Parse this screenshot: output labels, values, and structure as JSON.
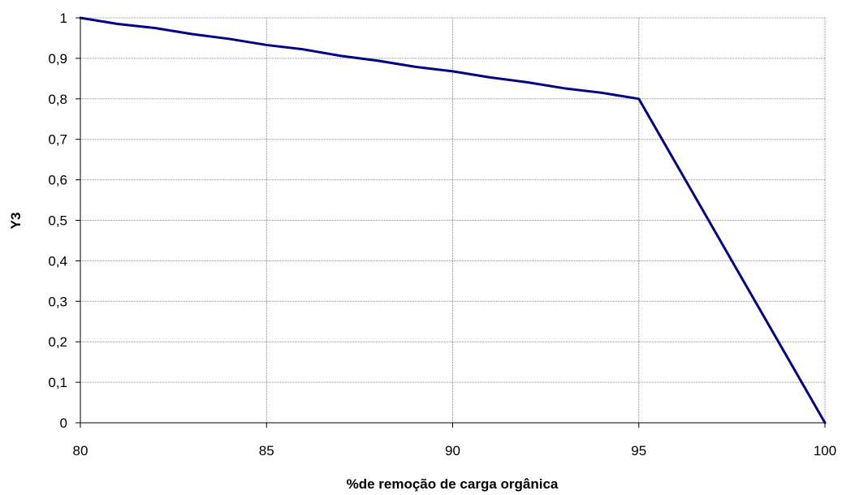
{
  "chart_data": {
    "type": "line",
    "title": "",
    "xlabel": "%de remoção de carga orgânica",
    "ylabel": "Y3",
    "xlim": [
      80,
      100
    ],
    "ylim": [
      0,
      1
    ],
    "xticks": [
      80,
      85,
      90,
      95,
      100
    ],
    "xtick_labels": [
      "80",
      "85",
      "90",
      "95",
      "100"
    ],
    "yticks": [
      0,
      0.1,
      0.2,
      0.3,
      0.4,
      0.5,
      0.6,
      0.7,
      0.8,
      0.9,
      1
    ],
    "ytick_labels": [
      "0",
      "0,1",
      "0,2",
      "0,3",
      "0,4",
      "0,5",
      "0,6",
      "0,7",
      "0,8",
      "0,9",
      "1"
    ],
    "grid": true,
    "legend": "none",
    "series": [
      {
        "color": "#000080",
        "x": [
          80,
          81,
          82,
          83,
          84,
          85,
          86,
          87,
          88,
          89,
          90,
          91,
          92,
          93,
          94,
          95,
          96,
          97,
          98,
          99,
          100
        ],
        "y": [
          1,
          0.985,
          0.975,
          0.96,
          0.948,
          0.933,
          0.922,
          0.906,
          0.894,
          0.879,
          0.868,
          0.853,
          0.841,
          0.826,
          0.815,
          0.8,
          0.64,
          0.48,
          0.32,
          0.16,
          0
        ]
      }
    ]
  }
}
